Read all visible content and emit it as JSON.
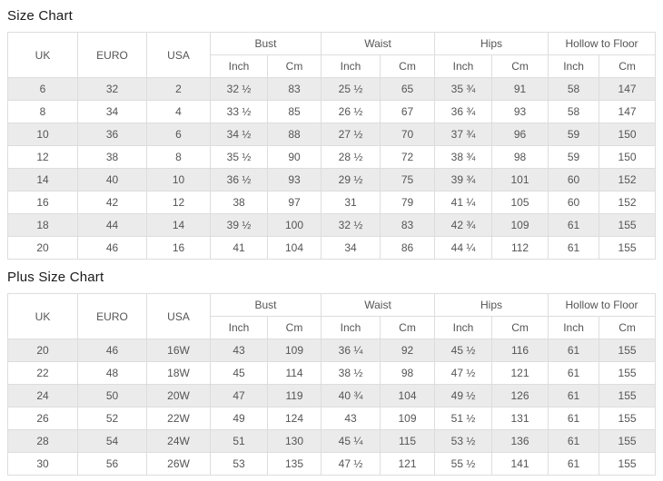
{
  "colors": {
    "row_stripe": "#ebebeb",
    "table_border": "#dddddd",
    "cell_text": "#555555",
    "title_text": "#1a1a1a",
    "background": "#ffffff"
  },
  "size_chart": {
    "title": "Size Chart",
    "columns": [
      "UK",
      "EURO",
      "USA"
    ],
    "groups": [
      "Bust",
      "Waist",
      "Hips",
      "Hollow to Floor"
    ],
    "units": [
      "Inch",
      "Cm"
    ],
    "rows": [
      [
        "6",
        "32",
        "2",
        "32 ½",
        "83",
        "25 ½",
        "65",
        "35 ¾",
        "91",
        "58",
        "147"
      ],
      [
        "8",
        "34",
        "4",
        "33 ½",
        "85",
        "26 ½",
        "67",
        "36 ¾",
        "93",
        "58",
        "147"
      ],
      [
        "10",
        "36",
        "6",
        "34 ½",
        "88",
        "27 ½",
        "70",
        "37 ¾",
        "96",
        "59",
        "150"
      ],
      [
        "12",
        "38",
        "8",
        "35 ½",
        "90",
        "28 ½",
        "72",
        "38 ¾",
        "98",
        "59",
        "150"
      ],
      [
        "14",
        "40",
        "10",
        "36 ½",
        "93",
        "29 ½",
        "75",
        "39 ¾",
        "101",
        "60",
        "152"
      ],
      [
        "16",
        "42",
        "12",
        "38",
        "97",
        "31",
        "79",
        "41 ¼",
        "105",
        "60",
        "152"
      ],
      [
        "18",
        "44",
        "14",
        "39 ½",
        "100",
        "32 ½",
        "83",
        "42 ¾",
        "109",
        "61",
        "155"
      ],
      [
        "20",
        "46",
        "16",
        "41",
        "104",
        "34",
        "86",
        "44 ¼",
        "112",
        "61",
        "155"
      ]
    ]
  },
  "plus_size_chart": {
    "title": "Plus Size Chart",
    "columns": [
      "UK",
      "EURO",
      "USA"
    ],
    "groups": [
      "Bust",
      "Waist",
      "Hips",
      "Hollow to Floor"
    ],
    "units": [
      "Inch",
      "Cm"
    ],
    "rows": [
      [
        "20",
        "46",
        "16W",
        "43",
        "109",
        "36 ¼",
        "92",
        "45 ½",
        "116",
        "61",
        "155"
      ],
      [
        "22",
        "48",
        "18W",
        "45",
        "114",
        "38 ½",
        "98",
        "47 ½",
        "121",
        "61",
        "155"
      ],
      [
        "24",
        "50",
        "20W",
        "47",
        "119",
        "40 ¾",
        "104",
        "49 ½",
        "126",
        "61",
        "155"
      ],
      [
        "26",
        "52",
        "22W",
        "49",
        "124",
        "43",
        "109",
        "51 ½",
        "131",
        "61",
        "155"
      ],
      [
        "28",
        "54",
        "24W",
        "51",
        "130",
        "45 ¼",
        "115",
        "53 ½",
        "136",
        "61",
        "155"
      ],
      [
        "30",
        "56",
        "26W",
        "53",
        "135",
        "47 ½",
        "121",
        "55 ½",
        "141",
        "61",
        "155"
      ]
    ]
  }
}
